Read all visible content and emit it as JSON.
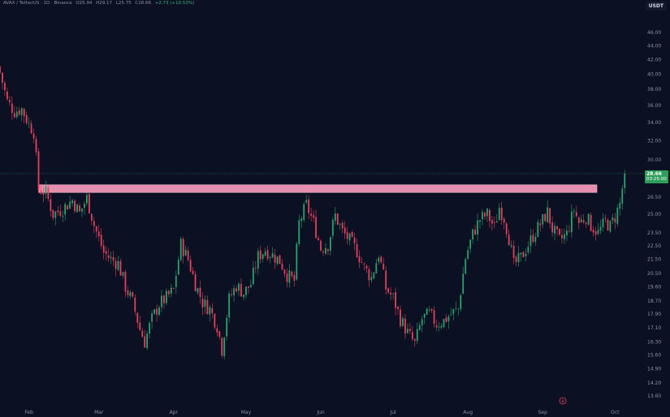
{
  "header": {
    "symbol": "AVAX / TetherUS · 1D · Binance",
    "open": "O25.94",
    "high": "H29.17",
    "low": "L25.75",
    "close": "C28.66",
    "change": "+2.73 (+10.53%)"
  },
  "unit_badge": "USDT",
  "last_price": {
    "price": "28.66",
    "countdown": "03:25:00"
  },
  "colors": {
    "background": "#0b1023",
    "up": "#2e9e6a",
    "down": "#e0415a",
    "resistance_zone": "#e58fae",
    "price_line": "#2d9f5a"
  },
  "chart_data": {
    "type": "candlestick",
    "title": "",
    "xlabel": "",
    "ylabel": "",
    "y_scale": "log",
    "y_ticks": [
      "46.00",
      "44.00",
      "42.00",
      "40.00",
      "38.00",
      "36.00",
      "34.00",
      "32.00",
      "30.00",
      "28.50",
      "26.50",
      "25.00",
      "23.50",
      "22.50",
      "21.50",
      "20.50",
      "19.60",
      "18.70",
      "17.90",
      "17.10",
      "16.30",
      "15.60",
      "14.90",
      "14.20",
      "13.60"
    ],
    "x_ticks": [
      "Feb",
      "Mar",
      "Apr",
      "May",
      "Jun",
      "Jul",
      "Aug",
      "Sep",
      "Oct"
    ],
    "resistance_zone": [
      26.9,
      27.6
    ],
    "last_close": 28.66,
    "close_path": [
      [
        "2024-01-20",
        40.2
      ],
      [
        "2024-01-23",
        36.5
      ],
      [
        "2024-01-26",
        35.3
      ],
      [
        "2024-01-29",
        35.6
      ],
      [
        "2024-02-01",
        33.8
      ],
      [
        "2024-02-03",
        33.0
      ],
      [
        "2024-02-05",
        27.2
      ],
      [
        "2024-02-08",
        26.9
      ],
      [
        "2024-02-11",
        25.0
      ],
      [
        "2024-02-15",
        25.5
      ],
      [
        "2024-02-19",
        26.2
      ],
      [
        "2024-02-22",
        25.1
      ],
      [
        "2024-02-25",
        26.4
      ],
      [
        "2024-02-28",
        24.1
      ],
      [
        "2024-03-03",
        22.0
      ],
      [
        "2024-03-06",
        21.5
      ],
      [
        "2024-03-09",
        21.2
      ],
      [
        "2024-03-12",
        19.6
      ],
      [
        "2024-03-15",
        18.6
      ],
      [
        "2024-03-18",
        17.0
      ],
      [
        "2024-03-20",
        16.3
      ],
      [
        "2024-03-23",
        17.6
      ],
      [
        "2024-03-26",
        18.5
      ],
      [
        "2024-03-29",
        18.9
      ],
      [
        "2024-04-01",
        19.4
      ],
      [
        "2024-04-04",
        22.6
      ],
      [
        "2024-04-07",
        21.5
      ],
      [
        "2024-04-10",
        19.8
      ],
      [
        "2024-04-13",
        18.6
      ],
      [
        "2024-04-16",
        18.2
      ],
      [
        "2024-04-19",
        17.2
      ],
      [
        "2024-04-21",
        15.9
      ],
      [
        "2024-04-24",
        18.8
      ],
      [
        "2024-04-27",
        19.7
      ],
      [
        "2024-04-30",
        19.2
      ],
      [
        "2024-05-03",
        19.8
      ],
      [
        "2024-05-06",
        21.7
      ],
      [
        "2024-05-09",
        22.2
      ],
      [
        "2024-05-12",
        21.8
      ],
      [
        "2024-05-15",
        21.4
      ],
      [
        "2024-05-18",
        20.4
      ],
      [
        "2024-05-21",
        20.0
      ],
      [
        "2024-05-23",
        24.3
      ],
      [
        "2024-05-26",
        25.8
      ],
      [
        "2024-05-29",
        24.3
      ],
      [
        "2024-06-01",
        22.3
      ],
      [
        "2024-06-04",
        22.6
      ],
      [
        "2024-06-07",
        24.9
      ],
      [
        "2024-06-10",
        23.6
      ],
      [
        "2024-06-13",
        22.9
      ],
      [
        "2024-06-16",
        22.1
      ],
      [
        "2024-06-19",
        20.9
      ],
      [
        "2024-06-22",
        20.2
      ],
      [
        "2024-06-25",
        21.9
      ],
      [
        "2024-06-28",
        19.5
      ],
      [
        "2024-07-01",
        18.9
      ],
      [
        "2024-07-04",
        17.6
      ],
      [
        "2024-07-07",
        16.8
      ],
      [
        "2024-07-10",
        16.2
      ],
      [
        "2024-07-13",
        17.6
      ],
      [
        "2024-07-16",
        17.9
      ],
      [
        "2024-07-19",
        17.3
      ],
      [
        "2024-07-22",
        17.5
      ],
      [
        "2024-07-25",
        17.9
      ],
      [
        "2024-07-28",
        18.2
      ],
      [
        "2024-07-31",
        21.6
      ],
      [
        "2024-08-03",
        23.4
      ],
      [
        "2024-08-06",
        24.6
      ],
      [
        "2024-08-09",
        25.0
      ],
      [
        "2024-08-12",
        23.9
      ],
      [
        "2024-08-14",
        25.6
      ],
      [
        "2024-08-16",
        24.7
      ],
      [
        "2024-08-18",
        23.1
      ],
      [
        "2024-08-20",
        21.1
      ],
      [
        "2024-08-23",
        21.6
      ],
      [
        "2024-08-26",
        22.6
      ],
      [
        "2024-08-29",
        23.6
      ],
      [
        "2024-09-01",
        24.5
      ],
      [
        "2024-09-03",
        25.2
      ],
      [
        "2024-09-05",
        23.8
      ],
      [
        "2024-09-08",
        22.9
      ],
      [
        "2024-09-11",
        23.4
      ],
      [
        "2024-09-14",
        25.4
      ],
      [
        "2024-09-16",
        24.3
      ],
      [
        "2024-09-19",
        24.8
      ],
      [
        "2024-09-21",
        24.1
      ],
      [
        "2024-09-24",
        23.5
      ],
      [
        "2024-09-27",
        24.4
      ],
      [
        "2024-09-29",
        24.0
      ],
      [
        "2024-10-01",
        24.8
      ],
      [
        "2024-10-03",
        25.9
      ],
      [
        "2024-10-05",
        28.66
      ]
    ]
  }
}
